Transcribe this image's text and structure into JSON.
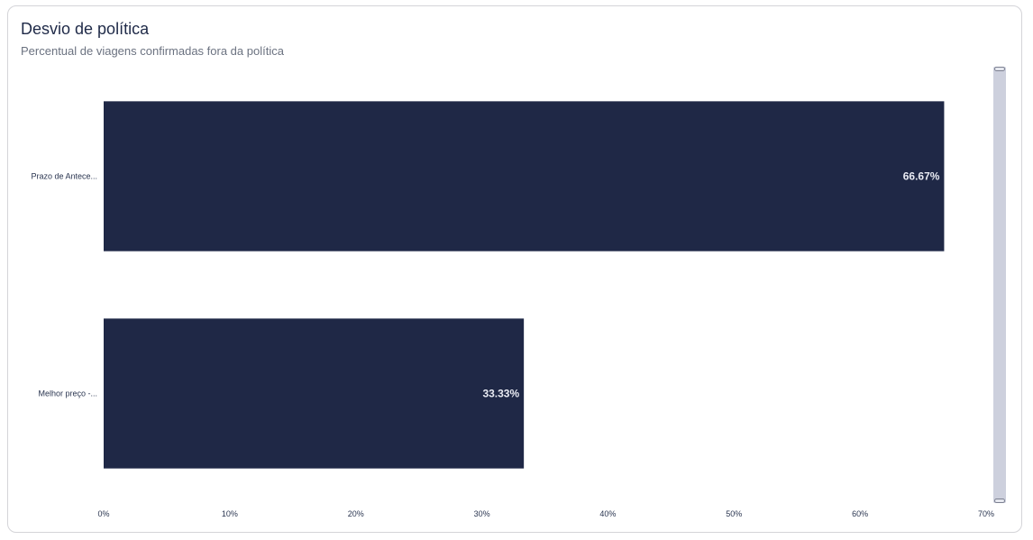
{
  "card": {
    "title": "Desvio de política",
    "subtitle": "Percentual de viagens confirmadas fora da política"
  },
  "colors": {
    "bar": "#1f2846",
    "value_inside": "#e8eaf2",
    "value_outside": "#2a3550",
    "scrollbar": "#cdd0dd"
  },
  "chart_data": {
    "type": "bar",
    "orientation": "horizontal",
    "categories": [
      "Prazo de Antece...",
      "Melhor preço -..."
    ],
    "values": [
      66.67,
      33.33
    ],
    "value_labels": [
      "66.67%",
      "33.33%"
    ],
    "xlim": [
      0,
      70
    ],
    "x_ticks": [
      "0%",
      "10%",
      "20%",
      "30%",
      "40%",
      "50%",
      "60%",
      "70%"
    ],
    "grid": false
  }
}
